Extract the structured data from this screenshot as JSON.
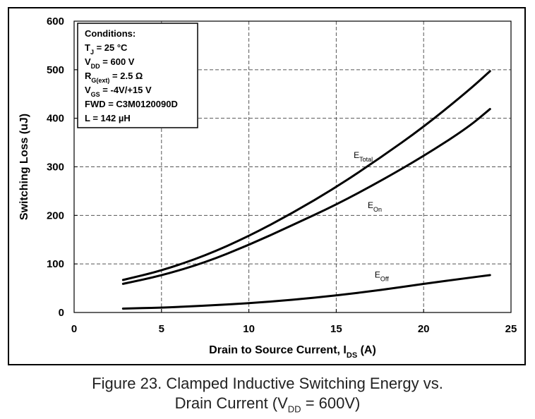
{
  "chart_data": {
    "type": "line",
    "xlabel": "Drain to Source Current, I",
    "xlabel_sub": "DS",
    "xlabel_unit": " (A)",
    "ylabel": "Switching Loss (uJ)",
    "xlim": [
      0,
      25
    ],
    "ylim": [
      0,
      600
    ],
    "x_ticks": [
      "0",
      "5",
      "10",
      "15",
      "20",
      "25"
    ],
    "y_ticks": [
      "0",
      "100",
      "200",
      "300",
      "400",
      "500",
      "600"
    ],
    "x_tick_values": [
      0,
      5,
      10,
      15,
      20,
      25
    ],
    "y_tick_values": [
      0,
      100,
      200,
      300,
      400,
      500,
      600
    ],
    "grid": true,
    "series": [
      {
        "name": "E",
        "name_sub": "Total",
        "color": "#000000",
        "x": [
          2.8,
          5,
          7.5,
          10,
          12.5,
          15,
          17.5,
          20,
          22.5,
          23.8
        ],
        "y": [
          67,
          86,
          117,
          157,
          205,
          258,
          318,
          382,
          455,
          497
        ]
      },
      {
        "name": "E",
        "name_sub": "On",
        "color": "#000000",
        "x": [
          2.8,
          5,
          7.5,
          10,
          12.5,
          15,
          17.5,
          20,
          22.5,
          23.8
        ],
        "y": [
          59,
          76,
          103,
          139,
          180,
          222,
          270,
          322,
          380,
          419
        ]
      },
      {
        "name": "E",
        "name_sub": "Off",
        "color": "#000000",
        "x": [
          2.8,
          5,
          7.5,
          10,
          12.5,
          15,
          17.5,
          20,
          22.5,
          23.8
        ],
        "y": [
          8,
          10,
          14,
          19,
          26,
          35,
          46,
          59,
          71,
          77
        ]
      }
    ]
  },
  "conditions": {
    "title": "Conditions:",
    "lines": [
      {
        "pre": "T",
        "sub": "J",
        "post": " = 25 °C"
      },
      {
        "pre": "V",
        "sub": "DD",
        "post": " = 600 V"
      },
      {
        "pre": "R",
        "sub": "G(ext)",
        "post": " = 2.5 Ω"
      },
      {
        "pre": "V",
        "sub": "GS",
        "post": " = -4V/+15 V"
      },
      {
        "pre": "FWD = C3M0120090D",
        "sub": "",
        "post": ""
      },
      {
        "pre": "L = 142 µH",
        "sub": "",
        "post": ""
      }
    ]
  },
  "caption": {
    "line1": "Figure 23. Clamped Inductive Switching Energy vs.",
    "line2_pre": "Drain Current (V",
    "line2_sub": "DD",
    "line2_post": " = 600V)"
  }
}
